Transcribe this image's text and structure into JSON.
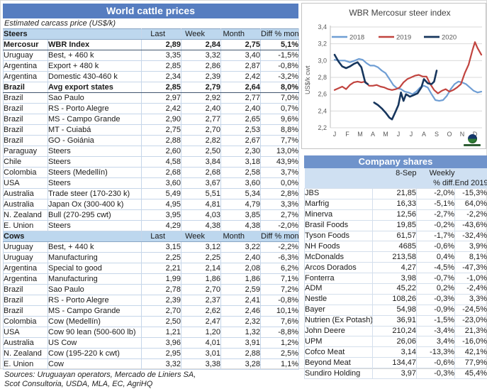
{
  "left_table": {
    "title": "World cattle prices",
    "subtitle": "Estimated carcass price (US$/k)",
    "col_headers": [
      "Last",
      "Week",
      "Month",
      "Diff % month"
    ],
    "sections": [
      {
        "label": "Steers",
        "rows": [
          {
            "country": "Mercosur",
            "detail": "WBR Index",
            "last": "2,89",
            "week": "2,84",
            "month": "2,75",
            "diff": "5,1%",
            "bold": true
          },
          {
            "country": "Uruguay",
            "detail": "Best, + 460 k",
            "last": "3,35",
            "week": "3,32",
            "month": "3,40",
            "diff": "-1,5%"
          },
          {
            "country": "Argentina",
            "detail": "Export + 480 k",
            "last": "2,85",
            "week": "2,86",
            "month": "2,87",
            "diff": "-0,8%"
          },
          {
            "country": "Argentina",
            "detail": "Domestic 430-460 k",
            "last": "2,34",
            "week": "2,39",
            "month": "2,42",
            "diff": "-3,2%"
          },
          {
            "country": "Brazil",
            "detail": "Avg export states",
            "last": "2,85",
            "week": "2,79",
            "month": "2,64",
            "diff": "8,0%",
            "bold": true
          },
          {
            "country": "Brazil",
            "detail": "Sao Paulo",
            "last": "2,97",
            "week": "2,92",
            "month": "2,77",
            "diff": "7,0%"
          },
          {
            "country": "Brazil",
            "detail": "RS - Porto Alegre",
            "last": "2,42",
            "week": "2,40",
            "month": "2,40",
            "diff": "0,7%"
          },
          {
            "country": "Brazil",
            "detail": "MS - Campo Grande",
            "last": "2,90",
            "week": "2,77",
            "month": "2,65",
            "diff": "9,6%"
          },
          {
            "country": "Brazil",
            "detail": "MT - Cuiabá",
            "last": "2,75",
            "week": "2,70",
            "month": "2,53",
            "diff": "8,8%"
          },
          {
            "country": "Brazil",
            "detail": "GO - Goiánia",
            "last": "2,88",
            "week": "2,82",
            "month": "2,67",
            "diff": "7,7%"
          },
          {
            "country": "Paraguay",
            "detail": "Steers",
            "last": "2,60",
            "week": "2,50",
            "month": "2,30",
            "diff": "13,0%"
          },
          {
            "country": "Chile",
            "detail": "Steers",
            "last": "4,58",
            "week": "3,84",
            "month": "3,18",
            "diff": "43,9%"
          },
          {
            "country": "Colombia",
            "detail": "Steers (Medellín)",
            "last": "2,68",
            "week": "2,68",
            "month": "2,58",
            "diff": "3,7%"
          },
          {
            "country": "USA",
            "detail": "Steers",
            "last": "3,60",
            "week": "3,67",
            "month": "3,60",
            "diff": "0,0%"
          },
          {
            "country": "Australia",
            "detail": "Trade steer (170-230 k)",
            "last": "5,49",
            "week": "5,51",
            "month": "5,34",
            "diff": "2,8%"
          },
          {
            "country": "Australia",
            "detail": "Japan Ox (300-400 k)",
            "last": "4,95",
            "week": "4,81",
            "month": "4,79",
            "diff": "3,3%"
          },
          {
            "country": "N. Zealand",
            "detail": "Bull (270-295 cwt)",
            "last": "3,95",
            "week": "4,03",
            "month": "3,85",
            "diff": "2,7%"
          },
          {
            "country": "E. Union",
            "detail": "Steers",
            "last": "4,29",
            "week": "4,38",
            "month": "4,38",
            "diff": "-2,0%"
          }
        ]
      },
      {
        "label": "Cows",
        "rows": [
          {
            "country": "Uruguay",
            "detail": "Best, + 440 k",
            "last": "3,15",
            "week": "3,12",
            "month": "3,22",
            "diff": "-2,2%"
          },
          {
            "country": "Uruguay",
            "detail": "Manufacturing",
            "last": "2,25",
            "week": "2,25",
            "month": "2,40",
            "diff": "-6,3%"
          },
          {
            "country": "Argentina",
            "detail": "Special to good",
            "last": "2,21",
            "week": "2,14",
            "month": "2,08",
            "diff": "6,2%"
          },
          {
            "country": "Argentina",
            "detail": "Manufacturing",
            "last": "1,99",
            "week": "1,86",
            "month": "1,86",
            "diff": "7,1%"
          },
          {
            "country": "Brazil",
            "detail": "Sao Paulo",
            "last": "2,78",
            "week": "2,70",
            "month": "2,59",
            "diff": "7,2%"
          },
          {
            "country": "Brazil",
            "detail": "RS - Porto Alegre",
            "last": "2,39",
            "week": "2,37",
            "month": "2,41",
            "diff": "-0,8%"
          },
          {
            "country": "Brazil",
            "detail": "MS - Campo Grande",
            "last": "2,70",
            "week": "2,62",
            "month": "2,46",
            "diff": "10,1%"
          },
          {
            "country": "Colombia",
            "detail": "Cow (Medellín)",
            "last": "2,50",
            "week": "2,47",
            "month": "2,32",
            "diff": "7,6%"
          },
          {
            "country": "USA",
            "detail": "Cow 90 lean (500-600 lb)",
            "last": "1,21",
            "week": "1,20",
            "month": "1,32",
            "diff": "-8,8%"
          },
          {
            "country": "Australia",
            "detail": "US Cow",
            "last": "3,96",
            "week": "4,01",
            "month": "3,91",
            "diff": "1,2%"
          },
          {
            "country": "N. Zealand",
            "detail": "Cow (195-220 k cwt)",
            "last": "2,95",
            "week": "3,01",
            "month": "2,88",
            "diff": "2,5%"
          },
          {
            "country": "E. Union",
            "detail": "Cow",
            "last": "3,32",
            "week": "3,38",
            "month": "3,28",
            "diff": "1,1%"
          }
        ]
      }
    ],
    "sources_line1": "Sources: Uruguayan operators, Mercado de Liniers SA,",
    "sources_line2": "Scot Consultoria, USDA, MLA, EC, AgriHQ"
  },
  "chart_data": {
    "type": "line",
    "title": "WBR Mercosur steer index",
    "ylabel": "US$/k cwt",
    "ylim": [
      2.2,
      3.4
    ],
    "yticks": [
      [
        "2,2",
        2.2
      ],
      [
        "2,4",
        2.4
      ],
      [
        "2,6",
        2.6
      ],
      [
        "2,8",
        2.8
      ],
      [
        "3,0",
        3.0
      ],
      [
        "3,2",
        3.2
      ],
      [
        "3,4",
        3.4
      ]
    ],
    "categories": [
      "J",
      "F",
      "M",
      "A",
      "M",
      "J",
      "J",
      "A",
      "S",
      "O",
      "N",
      "D"
    ],
    "grid": true,
    "legend_position": "top-inside",
    "series": [
      {
        "name": "2018",
        "color": "#6f9ed4",
        "points": [
          [
            0,
            3.01
          ],
          [
            0.4,
            3.0
          ],
          [
            0.8,
            3.0
          ],
          [
            1.2,
            2.98
          ],
          [
            1.6,
            3.0
          ],
          [
            1.9,
            3.02
          ],
          [
            2.2,
            3.01
          ],
          [
            2.5,
            2.97
          ],
          [
            2.8,
            2.94
          ],
          [
            3.1,
            2.94
          ],
          [
            3.4,
            2.92
          ],
          [
            3.7,
            2.88
          ],
          [
            4.0,
            2.85
          ],
          [
            4.3,
            2.78
          ],
          [
            4.6,
            2.71
          ],
          [
            4.9,
            2.67
          ],
          [
            5.2,
            2.66
          ],
          [
            5.5,
            2.63
          ],
          [
            5.8,
            2.62
          ],
          [
            6.1,
            2.6
          ],
          [
            6.4,
            2.63
          ],
          [
            6.7,
            2.68
          ],
          [
            7.0,
            2.7
          ],
          [
            7.3,
            2.68
          ],
          [
            7.6,
            2.6
          ],
          [
            7.9,
            2.53
          ],
          [
            8.2,
            2.52
          ],
          [
            8.5,
            2.53
          ],
          [
            8.8,
            2.58
          ],
          [
            9.1,
            2.66
          ],
          [
            9.4,
            2.72
          ],
          [
            9.7,
            2.75
          ],
          [
            10.0,
            2.74
          ],
          [
            10.3,
            2.72
          ],
          [
            10.6,
            2.68
          ],
          [
            10.9,
            2.64
          ],
          [
            11.2,
            2.62
          ],
          [
            11.5,
            2.63
          ]
        ]
      },
      {
        "name": "2019",
        "color": "#c1443f",
        "points": [
          [
            0,
            2.65
          ],
          [
            0.3,
            2.67
          ],
          [
            0.6,
            2.69
          ],
          [
            0.9,
            2.66
          ],
          [
            1.2,
            2.71
          ],
          [
            1.5,
            2.74
          ],
          [
            1.8,
            2.75
          ],
          [
            2.1,
            2.74
          ],
          [
            2.4,
            2.75
          ],
          [
            2.7,
            2.7
          ],
          [
            3.0,
            2.7
          ],
          [
            3.3,
            2.71
          ],
          [
            3.6,
            2.69
          ],
          [
            3.9,
            2.68
          ],
          [
            4.2,
            2.66
          ],
          [
            4.5,
            2.65
          ],
          [
            4.8,
            2.66
          ],
          [
            5.1,
            2.68
          ],
          [
            5.4,
            2.74
          ],
          [
            5.7,
            2.78
          ],
          [
            6.0,
            2.8
          ],
          [
            6.3,
            2.82
          ],
          [
            6.6,
            2.83
          ],
          [
            6.9,
            2.81
          ],
          [
            7.2,
            2.81
          ],
          [
            7.5,
            2.72
          ],
          [
            7.8,
            2.65
          ],
          [
            8.1,
            2.61
          ],
          [
            8.4,
            2.64
          ],
          [
            8.7,
            2.66
          ],
          [
            9.0,
            2.63
          ],
          [
            9.3,
            2.65
          ],
          [
            9.6,
            2.68
          ],
          [
            9.9,
            2.72
          ],
          [
            10.2,
            2.85
          ],
          [
            10.5,
            2.95
          ],
          [
            10.8,
            3.12
          ],
          [
            11.0,
            3.22
          ],
          [
            11.2,
            3.15
          ],
          [
            11.5,
            3.07
          ]
        ]
      },
      {
        "name": "2020",
        "color": "#17365d",
        "points": [
          [
            0,
            3.07
          ],
          [
            0.3,
            2.99
          ],
          [
            0.6,
            2.93
          ],
          [
            0.9,
            2.91
          ],
          [
            1.2,
            2.93
          ],
          [
            1.5,
            2.96
          ],
          [
            1.8,
            2.98
          ],
          [
            2.1,
            2.92
          ],
          [
            2.4,
            2.74
          ],
          [
            2.6,
            2.72
          ],
          null,
          [
            3.1,
            2.5
          ],
          [
            3.4,
            2.47
          ],
          [
            3.7,
            2.43
          ],
          [
            4.0,
            2.38
          ],
          [
            4.3,
            2.32
          ],
          [
            4.5,
            2.3
          ],
          [
            4.8,
            2.4
          ],
          [
            5.0,
            2.47
          ],
          [
            5.2,
            2.62
          ],
          [
            5.4,
            2.52
          ],
          [
            5.6,
            2.6
          ],
          [
            5.9,
            2.57
          ],
          [
            6.2,
            2.59
          ],
          [
            6.5,
            2.61
          ],
          [
            6.8,
            2.68
          ],
          [
            7.0,
            2.78
          ],
          [
            7.3,
            2.73
          ],
          [
            7.6,
            2.72
          ],
          [
            7.8,
            2.75
          ],
          [
            8.0,
            2.88
          ]
        ]
      }
    ]
  },
  "company_shares": {
    "title": "Company shares",
    "headers": {
      "date": "8-Sep",
      "weekly": "Weekly",
      "pct_diff": "% diff.",
      "end": "End 2019"
    },
    "rows": [
      {
        "name": "JBS",
        "price": "21,85",
        "weekly": "-2,0%",
        "end2019": "-15,3%"
      },
      {
        "name": "Marfrig",
        "price": "16,33",
        "weekly": "-5,1%",
        "end2019": "64,0%"
      },
      {
        "name": "Minerva",
        "price": "12,56",
        "weekly": "-2,7%",
        "end2019": "-2,2%"
      },
      {
        "name": "Brasil Foods",
        "price": "19,85",
        "weekly": "-0,2%",
        "end2019": "-43,6%"
      },
      {
        "name": "Tyson Foods",
        "price": "61,57",
        "weekly": "-1,7%",
        "end2019": "-32,4%"
      },
      {
        "name": "NH Foods",
        "price": "4685",
        "weekly": "-0,6%",
        "end2019": "3,9%"
      },
      {
        "name": "McDonalds",
        "price": "213,58",
        "weekly": "0,4%",
        "end2019": "8,1%"
      },
      {
        "name": "Arcos Dorados",
        "price": "4,27",
        "weekly": "-4,5%",
        "end2019": "-47,3%"
      },
      {
        "name": "Fonterra",
        "price": "3,98",
        "weekly": "-0,7%",
        "end2019": "-1,0%"
      },
      {
        "name": "ADM",
        "price": "45,22",
        "weekly": "0,2%",
        "end2019": "-2,4%"
      },
      {
        "name": "Nestle",
        "price": "108,26",
        "weekly": "-0,3%",
        "end2019": "3,3%"
      },
      {
        "name": "Bayer",
        "price": "54,98",
        "weekly": "-0,9%",
        "end2019": "-24,5%"
      },
      {
        "name": "Nutrien (Ex Potash)",
        "price": "36,91",
        "weekly": "-1,5%",
        "end2019": "-23,0%"
      },
      {
        "name": "John Deere",
        "price": "210,24",
        "weekly": "-3,4%",
        "end2019": "21,3%"
      },
      {
        "name": "UPM",
        "price": "26,06",
        "weekly": "3,4%",
        "end2019": "-16,0%"
      },
      {
        "name": "Cofco Meat",
        "price": "3,14",
        "weekly": "-13,3%",
        "end2019": "42,1%"
      },
      {
        "name": "Beyond Meat",
        "price": "134,47",
        "weekly": "-0,6%",
        "end2019": "77,9%"
      },
      {
        "name": "Sundiro Holding",
        "price": "3,97",
        "weekly": "-0,3%",
        "end2019": "45,4%"
      }
    ]
  }
}
